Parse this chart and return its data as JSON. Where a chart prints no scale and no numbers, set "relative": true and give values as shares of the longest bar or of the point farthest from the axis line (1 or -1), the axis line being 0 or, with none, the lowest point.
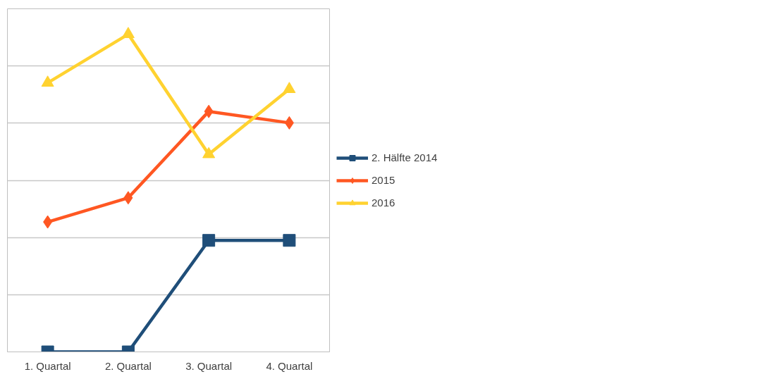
{
  "chart_data": {
    "type": "line",
    "relative": true,
    "categories": [
      "1. Quartal",
      "2. Quartal",
      "3. Quartal",
      "4. Quartal"
    ],
    "series": [
      {
        "name": "2. Hälfte 2014",
        "color": "#1f4e79",
        "marker": "square",
        "values": [
          0,
          0,
          0.351,
          0.351
        ]
      },
      {
        "name": "2015",
        "color": "#ff5722",
        "marker": "diamond",
        "values": [
          0.409,
          0.485,
          0.757,
          0.721
        ]
      },
      {
        "name": "2016",
        "color": "#ffd230",
        "marker": "triangle",
        "values": [
          0.847,
          1,
          0.622,
          0.827
        ]
      }
    ],
    "grid": "y",
    "legend": "right",
    "tick_labels": "x"
  }
}
